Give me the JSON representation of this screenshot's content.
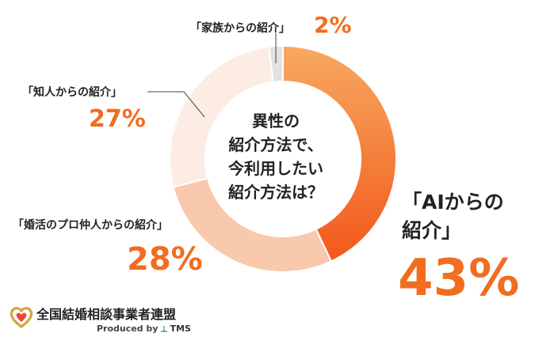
{
  "chart_data": {
    "type": "donut",
    "title": "異性の紹介方法で、今利用したい紹介方法は？",
    "title_lines": [
      "異性の",
      "紹介方法で、",
      "今利用したい",
      "紹介方法は？"
    ],
    "slices": [
      {
        "label": "「AIからの紹介」",
        "label_lines": [
          "「AIからの",
          "紹介」"
        ],
        "value": 43,
        "display": "43%",
        "color": "#f66a1e"
      },
      {
        "label": "「婚活のプロ仲人からの紹介」",
        "value": 28,
        "display": "28%",
        "color": "#f9c9ad"
      },
      {
        "label": "「知人からの紹介」",
        "value": 27,
        "display": "27%",
        "color": "#fdece3"
      },
      {
        "label": "「家族からの紹介」",
        "value": 2,
        "display": "2%",
        "color": "#e2e2e2"
      }
    ]
  },
  "logo": {
    "title": "全国結婚相談事業者連盟",
    "produced_by": "Produced by",
    "brand": "TMS",
    "colors": {
      "gold": "#d7a43a",
      "red": "#e04a3a",
      "green": "#3aa35a"
    }
  }
}
